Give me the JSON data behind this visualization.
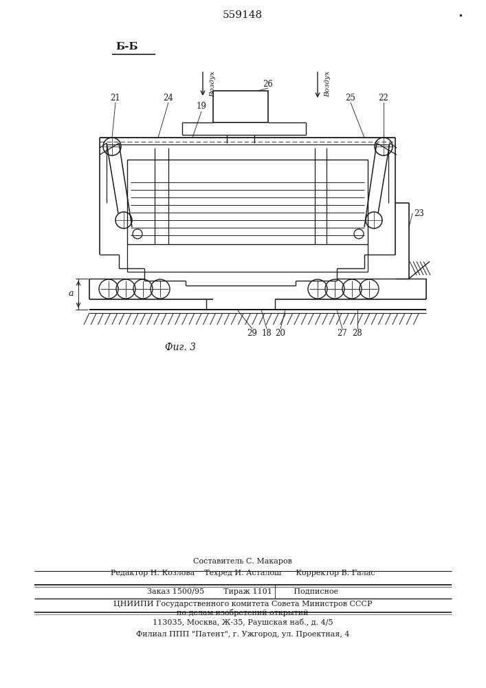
{
  "patent_number": "559148",
  "section_label": "Б-Б",
  "fig_label": "Фиг. 3",
  "label_a": "а",
  "bg_color": "#ffffff",
  "line_color": "#1a1a1a",
  "footer_lines": [
    "Составитель С. Макаров",
    "Редактор Н. Козлова    Техред И. Асталош      Корректор В. Галас",
    "Заказ 1500/95        Тираж 1101         Подписное",
    "ЦНИИПИ Государственного комитета Совета Министров СССР",
    "по делам изобретений открытий",
    "113035, Москва, Ж-35, Раушская наб., д. 4/5",
    "Филиал ППП \"Патент\", г. Ужгород, ул. Проектная, 4"
  ]
}
